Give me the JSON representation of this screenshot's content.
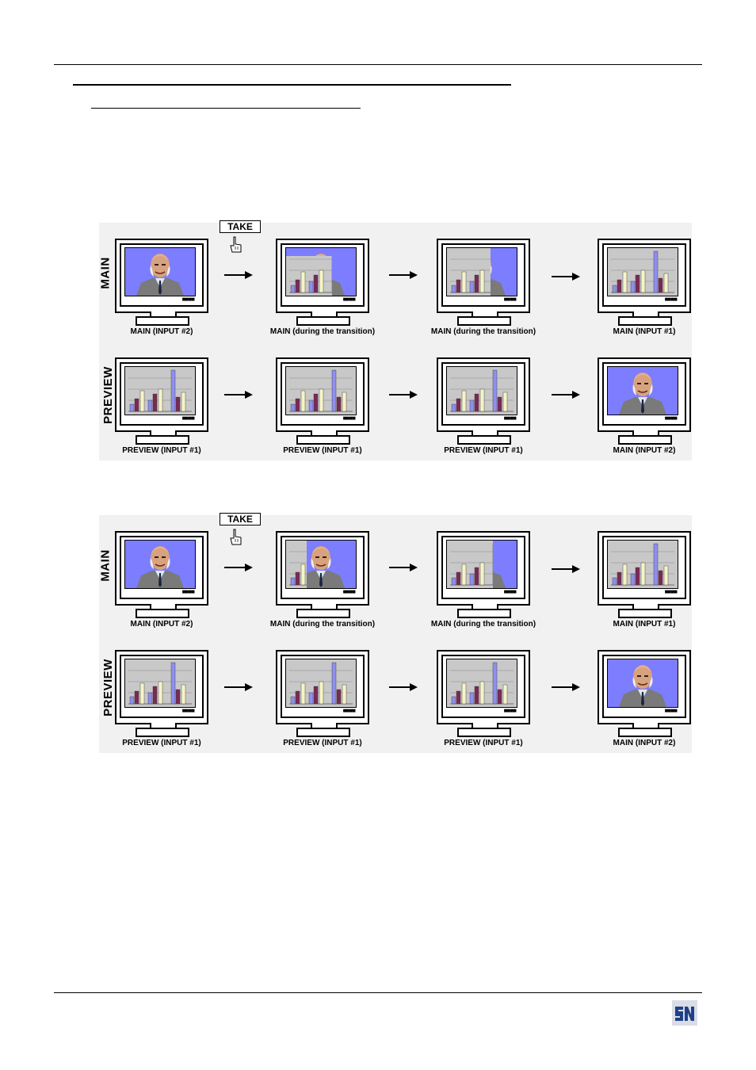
{
  "page": {
    "logo_text": "SN"
  },
  "diagrams": [
    {
      "take_label": "TAKE",
      "rows": [
        {
          "label": "MAIN",
          "captions": [
            "MAIN (INPUT #2)",
            "MAIN (during the transition)",
            "MAIN (during the transition)",
            "MAIN (INPUT #1)"
          ]
        },
        {
          "label": "PREVIEW",
          "captions": [
            "PREVIEW (INPUT #1)",
            "PREVIEW (INPUT #1)",
            "PREVIEW (INPUT #1)",
            "MAIN (INPUT #2)"
          ]
        }
      ]
    },
    {
      "take_label": "TAKE",
      "rows": [
        {
          "label": "MAIN",
          "captions": [
            "MAIN (INPUT #2)",
            "MAIN (during the transition)",
            "MAIN (during the transition)",
            "MAIN (INPUT #1)"
          ]
        },
        {
          "label": "PREVIEW",
          "captions": [
            "PREVIEW (INPUT #1)",
            "PREVIEW (INPUT #1)",
            "PREVIEW (INPUT #1)",
            "MAIN (INPUT #2)"
          ]
        }
      ]
    }
  ],
  "colors": {
    "person_bg": "#7d7dff",
    "chart_bg": "#c8c8c8",
    "bar_purple": "#7a2a55",
    "bar_blue": "#8f8fef",
    "bar_cream": "#f6f3c8",
    "suit": "#7a7a7a",
    "skin": "#d9a27e"
  }
}
